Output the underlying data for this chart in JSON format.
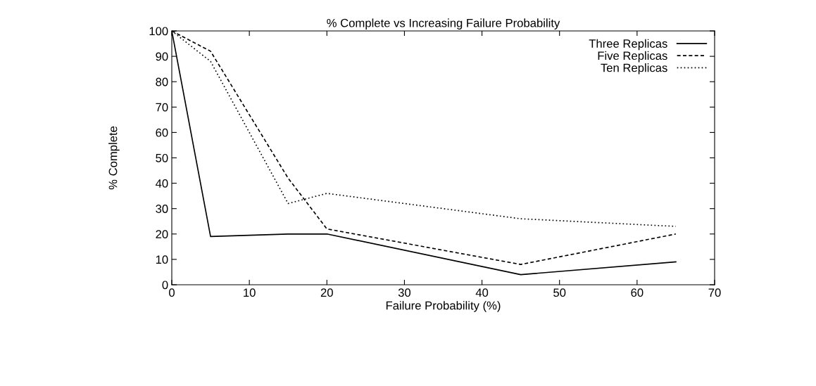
{
  "chart_data": {
    "type": "line",
    "title": "% Complete vs Increasing Failure Probability",
    "xlabel": "Failure Probability (%)",
    "ylabel": "% Complete",
    "x": [
      0,
      5,
      15,
      20,
      45,
      65
    ],
    "series": [
      {
        "name": "Three Replicas",
        "color": "#000000",
        "line_style": "solid",
        "values": [
          100,
          19,
          20,
          20,
          4,
          9
        ]
      },
      {
        "name": "Five Replicas",
        "color": "#000000",
        "line_style": "dashed",
        "values": [
          100,
          92,
          42,
          22,
          8,
          20
        ]
      },
      {
        "name": "Ten Replicas",
        "color": "#000000",
        "line_style": "dotted",
        "values": [
          100,
          88,
          32,
          36,
          26,
          23
        ]
      }
    ],
    "xlim": [
      0,
      70
    ],
    "xticks": [
      0,
      10,
      20,
      30,
      40,
      50,
      60,
      70
    ],
    "ylim": [
      0,
      100
    ],
    "yticks": [
      0,
      10,
      20,
      30,
      40,
      50,
      60,
      70,
      80,
      90,
      100
    ],
    "grid": false,
    "legend": "top right",
    "marker": "none"
  }
}
